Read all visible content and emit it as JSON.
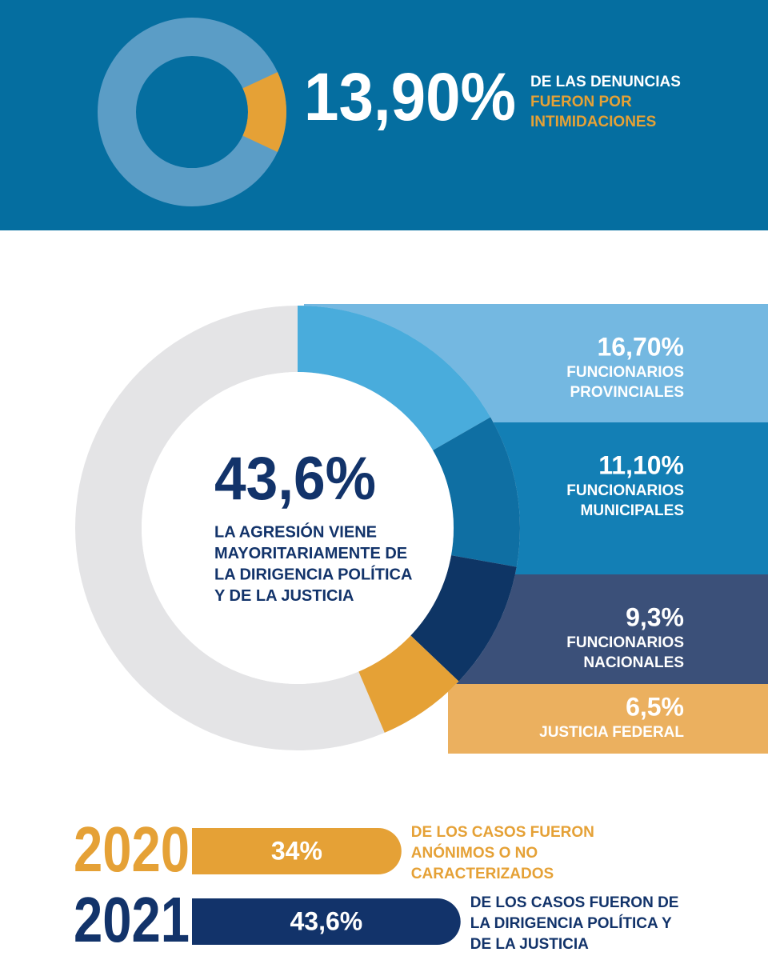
{
  "chart_data": [
    {
      "type": "donut",
      "values": [
        13.9
      ],
      "value_labels": [
        "13,90%"
      ],
      "color": "#e5a136",
      "track_color": "#5b9dc6",
      "annotation": [
        "DE LAS DENUNCIAS",
        "FUERON POR",
        "INTIMIDACIONES"
      ]
    },
    {
      "type": "donut",
      "categories": [
        [
          "FUNCIONARIOS",
          "PROVINCIALES"
        ],
        [
          "FUNCIONARIOS",
          "MUNICIPALES"
        ],
        [
          "FUNCIONARIOS",
          "NACIONALES"
        ],
        [
          "JUSTICIA FEDERAL"
        ]
      ],
      "values": [
        16.7,
        11.1,
        9.3,
        6.5
      ],
      "value_labels": [
        "16,70%",
        "11,10%",
        "9,3%",
        "6,5%"
      ],
      "colors": [
        "#49acdc",
        "#0f6fa3",
        "#0e3565",
        "#e5a136"
      ],
      "band_colors": [
        "#74b8e1",
        "#137fb5",
        "#3b5079",
        "#ebb05f"
      ],
      "track_color": "#e4e4e6",
      "total": 43.6,
      "total_label": "43,6%",
      "annotation": [
        "LA AGRESIÓN VIENE",
        "MAYORITARIAMENTE DE",
        "LA DIRIGENCIA POLÍTICA",
        "Y DE LA JUSTICIA"
      ]
    },
    {
      "type": "bar",
      "categories": [
        "2020",
        "2021"
      ],
      "values": [
        34,
        43.6
      ],
      "value_labels": [
        "34%",
        "43,6%"
      ],
      "colors": [
        "#e5a136",
        "#12336a"
      ],
      "captions": [
        [
          "DE LOS CASOS FUERON",
          "ANÓNIMOS O NO",
          "CARACTERIZADOS"
        ],
        [
          "DE LOS CASOS FUERON DE",
          "LA DIRIGENCIA POLÍTICA Y",
          "DE LA JUSTICIA"
        ]
      ]
    }
  ]
}
